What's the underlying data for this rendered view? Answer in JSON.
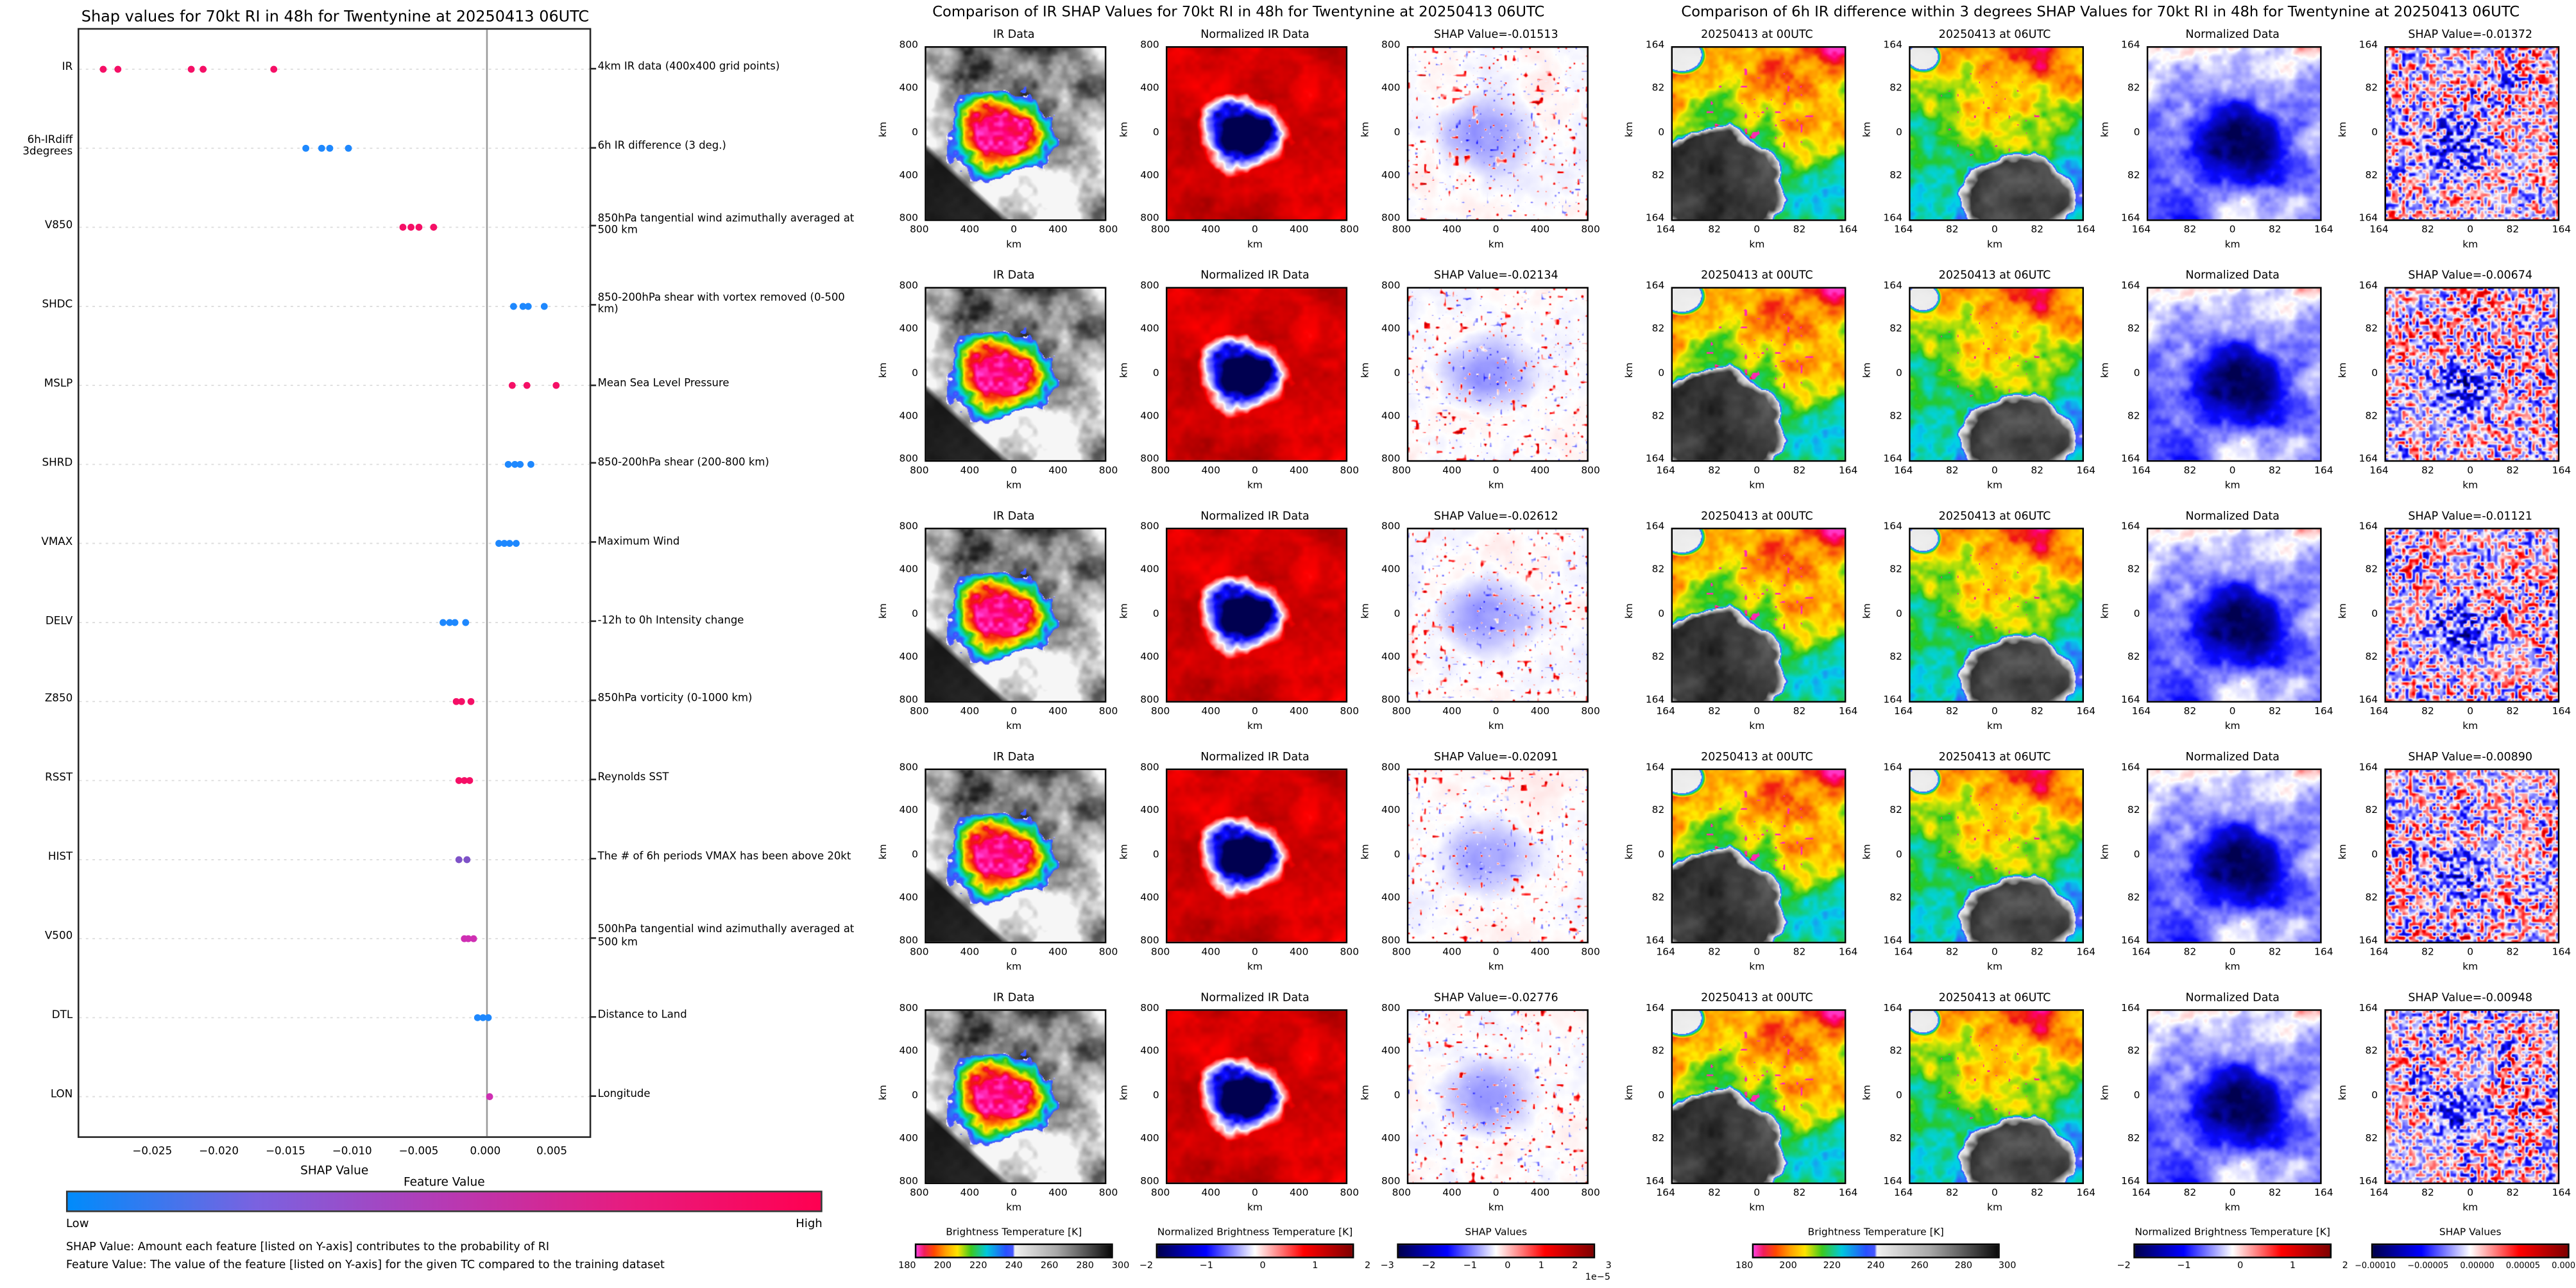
{
  "page": {
    "background": "#ffffff"
  },
  "left_panel": {
    "title": "Shap values for 70kt RI in 48h for Twentynine at 20250413 06UTC",
    "xlabel": "SHAP Value",
    "x_ticks": [
      "−0.025",
      "−0.020",
      "−0.015",
      "−0.010",
      "−0.005",
      "0.000",
      "0.005"
    ],
    "x_tick_values": [
      -0.025,
      -0.02,
      -0.015,
      -0.01,
      -0.005,
      0,
      0.005
    ],
    "point_colors": {
      "high": "#f50f66",
      "low": "#1e88fe",
      "mid": "#7e52c8",
      "magenta": "#cf2fb3"
    },
    "colorbar": {
      "title": "Feature Value",
      "low_label": "Low",
      "high_label": "High",
      "gradient": [
        "#008bfb",
        "#7a62e0",
        "#b63ab4",
        "#e81b7d",
        "#ff0051"
      ]
    },
    "footnotes": [
      "SHAP Value: Amount each feature [listed on Y-axis] contributes to the probability of RI",
      "Feature Value: The value of the feature [listed on Y-axis] for the given TC compared to the training dataset"
    ]
  },
  "middle_section": {
    "title": "Comparison of IR SHAP Values for 70kt RI in 48h for Twentynine at 20250413 06UTC",
    "col_titles": [
      "IR Data",
      "Normalized IR Data"
    ],
    "axis_label": "km",
    "x_ticks": [
      "800",
      "400",
      "0",
      "400",
      "800"
    ],
    "y_ticks": [
      "800",
      "400",
      "0",
      "400",
      "800"
    ],
    "rows": [
      {
        "shap_title": "SHAP Value=-0.01513"
      },
      {
        "shap_title": "SHAP Value=-0.02134"
      },
      {
        "shap_title": "SHAP Value=-0.02612"
      },
      {
        "shap_title": "SHAP Value=-0.02091"
      },
      {
        "shap_title": "SHAP Value=-0.02776"
      }
    ],
    "colorbars": [
      {
        "title": "Brightness Temperature [K]",
        "ticks": [
          "180",
          "200",
          "220",
          "240",
          "260",
          "280",
          "300"
        ],
        "type": "bt"
      },
      {
        "title": "Normalized Brightness Temperature [K]",
        "ticks": [
          "−2",
          "−1",
          "0",
          "1",
          "2"
        ],
        "type": "seismic"
      },
      {
        "title": "SHAP Values",
        "ticks": [
          "−3",
          "−2",
          "−1",
          "0",
          "1",
          "2",
          "3"
        ],
        "offset": "1e−5",
        "type": "seismic"
      }
    ]
  },
  "right_section": {
    "title": "Comparison of 6h IR difference within 3 degrees SHAP Values for 70kt RI in 48h for Twentynine at 20250413 06UTC",
    "col_titles": [
      "20250413 at 00UTC",
      "20250413 at 06UTC",
      "Normalized Data"
    ],
    "axis_label": "km",
    "x_ticks": [
      "164",
      "82",
      "0",
      "82",
      "164"
    ],
    "y_ticks": [
      "164",
      "82",
      "0",
      "82",
      "164"
    ],
    "rows": [
      {
        "shap_title": "SHAP Value=-0.01372"
      },
      {
        "shap_title": "SHAP Value=-0.00674"
      },
      {
        "shap_title": "SHAP Value=-0.01121"
      },
      {
        "shap_title": "SHAP Value=-0.00890"
      },
      {
        "shap_title": "SHAP Value=-0.00948"
      }
    ],
    "colorbars": [
      {
        "title": "Brightness Temperature [K]",
        "ticks": [
          "180",
          "200",
          "220",
          "240",
          "260",
          "280",
          "300"
        ],
        "type": "bt"
      },
      {
        "title": "Normalized Brightness Temperature [K]",
        "ticks": [
          "−2",
          "−1",
          "0",
          "1",
          "2"
        ],
        "type": "seismic"
      },
      {
        "title": "SHAP Values",
        "ticks": [
          "−0.00010",
          "−0.00005",
          "0.00000",
          "0.00005",
          "0.00010"
        ],
        "type": "seismic"
      }
    ]
  },
  "chart_data": [
    {
      "type": "scatter",
      "title": "Shap values for 70kt RI in 48h for Twentynine at 20250413 06UTC",
      "xlabel": "SHAP Value",
      "xlim": [
        -0.0306,
        0.0077
      ],
      "x_ticks": [
        -0.025,
        -0.02,
        -0.015,
        -0.01,
        -0.005,
        0,
        0.005
      ],
      "zero_line": 0,
      "legend": "Feature Value colorbar: Low (blue) to High (pink)",
      "features": [
        {
          "label": [
            "IR"
          ],
          "annotation": "4km IR data (400x400 grid points)",
          "points": [
            {
              "x": -0.0288,
              "v": "high"
            },
            {
              "x": -0.0277,
              "v": "high"
            },
            {
              "x": -0.0222,
              "v": "high"
            },
            {
              "x": -0.0213,
              "v": "high"
            },
            {
              "x": -0.016,
              "v": "high"
            }
          ]
        },
        {
          "label": [
            "6h-IRdiff",
            "3degrees"
          ],
          "annotation": "6h IR difference (3 deg.)",
          "points": [
            {
              "x": -0.0136,
              "v": "low"
            },
            {
              "x": -0.0124,
              "v": "low"
            },
            {
              "x": -0.0118,
              "v": "low"
            },
            {
              "x": -0.0104,
              "v": "low"
            }
          ]
        },
        {
          "label": [
            "V850"
          ],
          "annotation": "850hPa tangential wind azimuthally averaged at 500 km",
          "points": [
            {
              "x": -0.0063,
              "v": "high"
            },
            {
              "x": -0.0057,
              "v": "high"
            },
            {
              "x": -0.0051,
              "v": "high"
            },
            {
              "x": -0.004,
              "v": "high"
            }
          ]
        },
        {
          "label": [
            "SHDC"
          ],
          "annotation": "850-200hPa shear with vortex removed (0-500 km)",
          "points": [
            {
              "x": 0.002,
              "v": "low"
            },
            {
              "x": 0.0027,
              "v": "low"
            },
            {
              "x": 0.0031,
              "v": "low"
            },
            {
              "x": 0.0043,
              "v": "low"
            }
          ]
        },
        {
          "label": [
            "MSLP"
          ],
          "annotation": "Mean Sea Level Pressure",
          "points": [
            {
              "x": 0.0019,
              "v": "high"
            },
            {
              "x": 0.003,
              "v": "high"
            },
            {
              "x": 0.0052,
              "v": "high"
            }
          ]
        },
        {
          "label": [
            "SHRD"
          ],
          "annotation": "850-200hPa shear (200-800 km)",
          "points": [
            {
              "x": 0.0016,
              "v": "low"
            },
            {
              "x": 0.0021,
              "v": "low"
            },
            {
              "x": 0.0025,
              "v": "low"
            },
            {
              "x": 0.0033,
              "v": "low"
            }
          ]
        },
        {
          "label": [
            "VMAX"
          ],
          "annotation": "Maximum Wind",
          "points": [
            {
              "x": 0.0009,
              "v": "low"
            },
            {
              "x": 0.0013,
              "v": "low"
            },
            {
              "x": 0.0017,
              "v": "low"
            },
            {
              "x": 0.0022,
              "v": "low"
            }
          ]
        },
        {
          "label": [
            "DELV"
          ],
          "annotation": "-12h to 0h Intensity change",
          "points": [
            {
              "x": -0.0033,
              "v": "low"
            },
            {
              "x": -0.0028,
              "v": "low"
            },
            {
              "x": -0.0024,
              "v": "low"
            },
            {
              "x": -0.0016,
              "v": "low"
            }
          ]
        },
        {
          "label": [
            "Z850"
          ],
          "annotation": "850hPa vorticity (0-1000 km)",
          "points": [
            {
              "x": -0.0023,
              "v": "high"
            },
            {
              "x": -0.0019,
              "v": "high"
            },
            {
              "x": -0.0012,
              "v": "high"
            }
          ]
        },
        {
          "label": [
            "RSST"
          ],
          "annotation": "Reynolds SST",
          "points": [
            {
              "x": -0.0021,
              "v": "high"
            },
            {
              "x": -0.0017,
              "v": "high"
            },
            {
              "x": -0.0013,
              "v": "high"
            }
          ]
        },
        {
          "label": [
            "HIST"
          ],
          "annotation": "The # of 6h periods VMAX has been above 20kt",
          "points": [
            {
              "x": -0.0021,
              "v": "mid"
            },
            {
              "x": -0.0015,
              "v": "mid"
            }
          ]
        },
        {
          "label": [
            "V500"
          ],
          "annotation": "500hPa tangential wind azimuthally averaged at 500 km",
          "points": [
            {
              "x": -0.0017,
              "v": "magenta"
            },
            {
              "x": -0.0014,
              "v": "magenta"
            },
            {
              "x": -0.001,
              "v": "magenta"
            }
          ]
        },
        {
          "label": [
            "DTL"
          ],
          "annotation": "Distance to Land",
          "points": [
            {
              "x": -0.0007,
              "v": "low"
            },
            {
              "x": -0.0003,
              "v": "low"
            },
            {
              "x": 0.0001,
              "v": "low"
            }
          ]
        },
        {
          "label": [
            "LON"
          ],
          "annotation": "Longitude",
          "points": [
            {
              "x": 0.0002,
              "v": "magenta"
            }
          ]
        }
      ]
    },
    {
      "type": "heatmap",
      "title": "Comparison of IR SHAP Values for 70kt RI in 48h for Twentynine at 20250413 06UTC",
      "columns": [
        "IR Data",
        "Normalized IR Data",
        "SHAP Value map"
      ],
      "axis_range_km": [
        -800,
        800
      ],
      "row_shap_values": [
        -0.01513,
        -0.02134,
        -0.02612,
        -0.02091,
        -0.02776
      ],
      "colorbars": [
        "Brightness Temperature [K] 180 to 300",
        "Normalized Brightness Temperature [K] -2 to 2",
        "SHAP Values -3e-5 to 3e-5"
      ]
    },
    {
      "type": "heatmap",
      "title": "Comparison of 6h IR difference within 3 degrees SHAP Values for 70kt RI in 48h for Twentynine at 20250413 06UTC",
      "columns": [
        "20250413 at 00UTC",
        "20250413 at 06UTC",
        "Normalized Data",
        "SHAP Value map"
      ],
      "axis_range_km": [
        -164,
        164
      ],
      "row_shap_values": [
        -0.01372,
        -0.00674,
        -0.01121,
        -0.0089,
        -0.00948
      ],
      "colorbars": [
        "Brightness Temperature [K] 180 to 300",
        "Normalized Brightness Temperature [K] -2 to 2",
        "SHAP Values -0.00010 to 0.00010"
      ]
    }
  ]
}
